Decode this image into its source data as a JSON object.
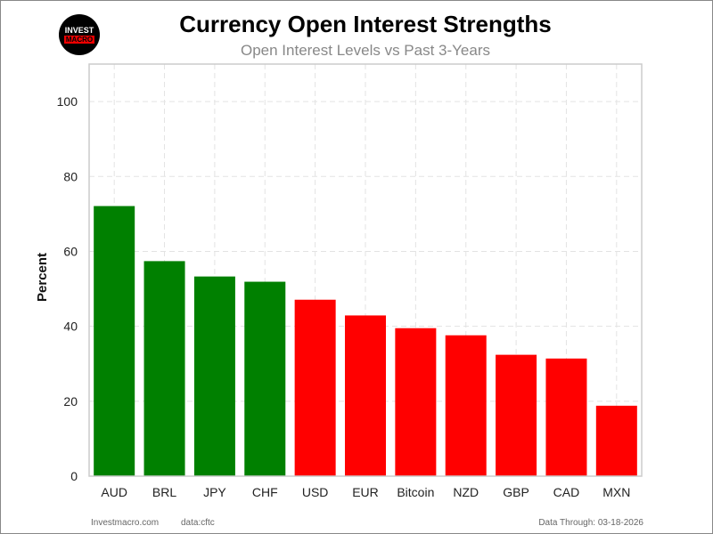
{
  "logo": {
    "line1": "INVEST",
    "line2": "MACRO"
  },
  "footer": {
    "site": "Investmacro.com",
    "source": "data:cftc",
    "date": "Data Through: 03-18-2026"
  },
  "colors": {
    "positive": "#008000",
    "negative": "#ff0000"
  },
  "chart_data": {
    "type": "bar",
    "title": "Currency Open Interest Strengths",
    "subtitle": "Open Interest Levels vs Past 3-Years",
    "xlabel": "",
    "ylabel": "Percent",
    "ylim": [
      0,
      110
    ],
    "yticks": [
      0,
      20,
      40,
      60,
      80,
      100
    ],
    "grid": true,
    "categories": [
      "AUD",
      "BRL",
      "JPY",
      "CHF",
      "USD",
      "EUR",
      "Bitcoin",
      "NZD",
      "GBP",
      "CAD",
      "MXN"
    ],
    "values": [
      72.1,
      57.4,
      53.3,
      51.9,
      47.1,
      42.9,
      39.5,
      37.6,
      32.4,
      31.4,
      18.8
    ],
    "bar_colors": [
      "#008000",
      "#008000",
      "#008000",
      "#008000",
      "#ff0000",
      "#ff0000",
      "#ff0000",
      "#ff0000",
      "#ff0000",
      "#ff0000",
      "#ff0000"
    ]
  }
}
